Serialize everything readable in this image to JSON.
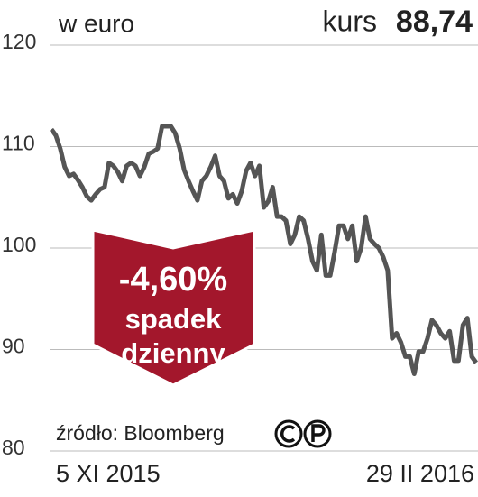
{
  "chart_data": {
    "type": "line",
    "unit_label": "w euro",
    "price_label": "kurs",
    "price": "88,74",
    "annotation": {
      "change": "-4,60%",
      "line1": "spadek",
      "line2": "dzienny"
    },
    "source": "źródło: Bloomberg",
    "categories": [
      "5 XI 2015",
      null,
      null,
      null,
      null,
      null,
      null,
      null,
      null,
      null,
      null,
      null,
      null,
      null,
      null,
      null,
      null,
      null,
      null,
      null,
      null,
      null,
      null,
      null,
      null,
      null,
      null,
      null,
      null,
      null,
      null,
      null,
      null,
      null,
      null,
      null,
      null,
      null,
      null,
      null,
      null,
      null,
      null,
      null,
      null,
      null,
      null,
      null,
      null,
      null,
      null,
      null,
      null,
      null,
      null,
      null,
      null,
      null,
      null,
      null,
      null,
      null,
      null,
      null,
      null,
      null,
      null,
      null,
      null,
      null,
      null,
      null,
      null,
      null,
      null,
      null,
      null,
      null,
      null,
      null,
      null,
      null,
      null,
      null,
      null,
      null,
      null,
      null,
      null,
      null,
      null,
      null,
      null,
      null,
      null,
      null,
      "29 II 2016"
    ],
    "values": [
      111.7,
      111.1,
      109.8,
      108,
      107.1,
      107.3,
      106.7,
      106,
      105.1,
      104.7,
      105.3,
      105.8,
      106,
      108.4,
      108.1,
      107.5,
      106.6,
      108.1,
      108.4,
      108.1,
      107.1,
      108,
      109.3,
      109.5,
      109.8,
      112,
      112,
      112,
      111.3,
      109.8,
      107.7,
      106.6,
      105.6,
      104.7,
      106.6,
      107.1,
      108,
      109.1,
      107.1,
      106.6,
      104.9,
      105.3,
      104.4,
      105.6,
      107.6,
      108.4,
      107.1,
      108.1,
      104,
      104.6,
      106,
      103.1,
      103.1,
      102.7,
      100.4,
      101.3,
      103.1,
      102.7,
      100.9,
      98.7,
      97.8,
      101.3,
      97.3,
      97.3,
      99.6,
      102.2,
      102.2,
      100.9,
      102.2,
      98.7,
      100,
      103.1,
      100.9,
      100.4,
      100,
      99.1,
      97.8,
      91.1,
      91.6,
      90.7,
      89.3,
      89.3,
      87.6,
      89.8,
      89.8,
      91.1,
      92.9,
      92.4,
      91.6,
      91.1,
      91.8,
      88.9,
      88.9,
      92.4,
      93.1,
      89.3,
      88.7
    ],
    "color": "#555555",
    "ylim": [
      80,
      120
    ],
    "yticks": [
      80,
      90,
      100,
      110,
      120
    ],
    "grid": true
  }
}
